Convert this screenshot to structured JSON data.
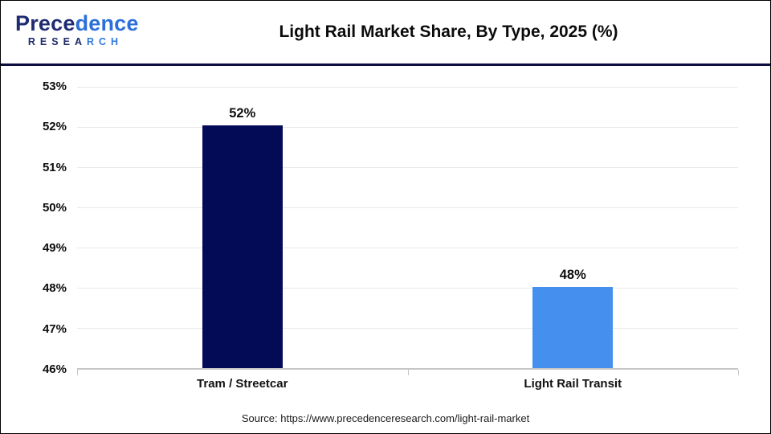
{
  "header": {
    "logo": {
      "name_left": "Prece",
      "name_right": "dence",
      "sub_left": "RESEA",
      "sub_right": "RCH"
    },
    "title": "Light Rail Market Share, By Type, 2025 (%)"
  },
  "chart_data": {
    "type": "bar",
    "title": "Light Rail Market Share, By Type, 2025 (%)",
    "categories": [
      "Tram / Streetcar",
      "Light Rail Transit"
    ],
    "values": [
      52,
      48
    ],
    "value_labels": [
      "52%",
      "48%"
    ],
    "bar_colors": [
      "#030B56",
      "#4590EE"
    ],
    "xlabel": "",
    "ylabel": "",
    "ylim": [
      46,
      53
    ],
    "ytick_labels_top_to_bottom": [
      "53%",
      "52%",
      "51%",
      "50%",
      "49%",
      "48%",
      "47%",
      "46%"
    ],
    "grid": true,
    "legend": false
  },
  "source": {
    "text": "Source: https://www.precedenceresearch.com/light-rail-market"
  },
  "colors": {
    "bar_navy": "#030B56",
    "bar_blue": "#4590EE",
    "header_divider": "#0d0d3f",
    "gridline": "#e9e9e9",
    "axis_line": "#c6c6c6",
    "logo_navy": "#202c72",
    "logo_blue": "#2c6fd8"
  }
}
